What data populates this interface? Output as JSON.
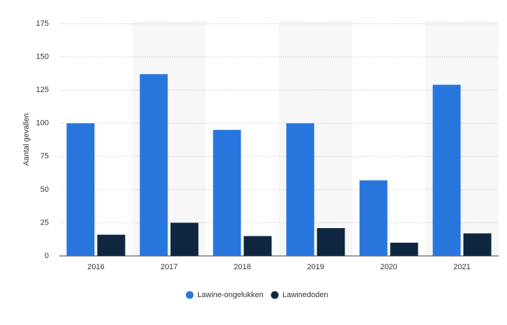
{
  "chart_data": {
    "type": "bar",
    "y_label": "Aantal gevallen",
    "categories": [
      "2016",
      "2017",
      "2018",
      "2019",
      "2020",
      "2021"
    ],
    "series": [
      {
        "name": "Lawine-ongelukken",
        "color": "#2876dd",
        "values": [
          100,
          137,
          95,
          100,
          57,
          129
        ]
      },
      {
        "name": "Lawinedoden",
        "color": "#0f2640",
        "values": [
          16,
          25,
          15,
          21,
          10,
          17
        ]
      }
    ],
    "ylim": [
      0,
      175
    ],
    "yticks": [
      0,
      25,
      50,
      75,
      100,
      125,
      150,
      175
    ],
    "grid": true
  }
}
